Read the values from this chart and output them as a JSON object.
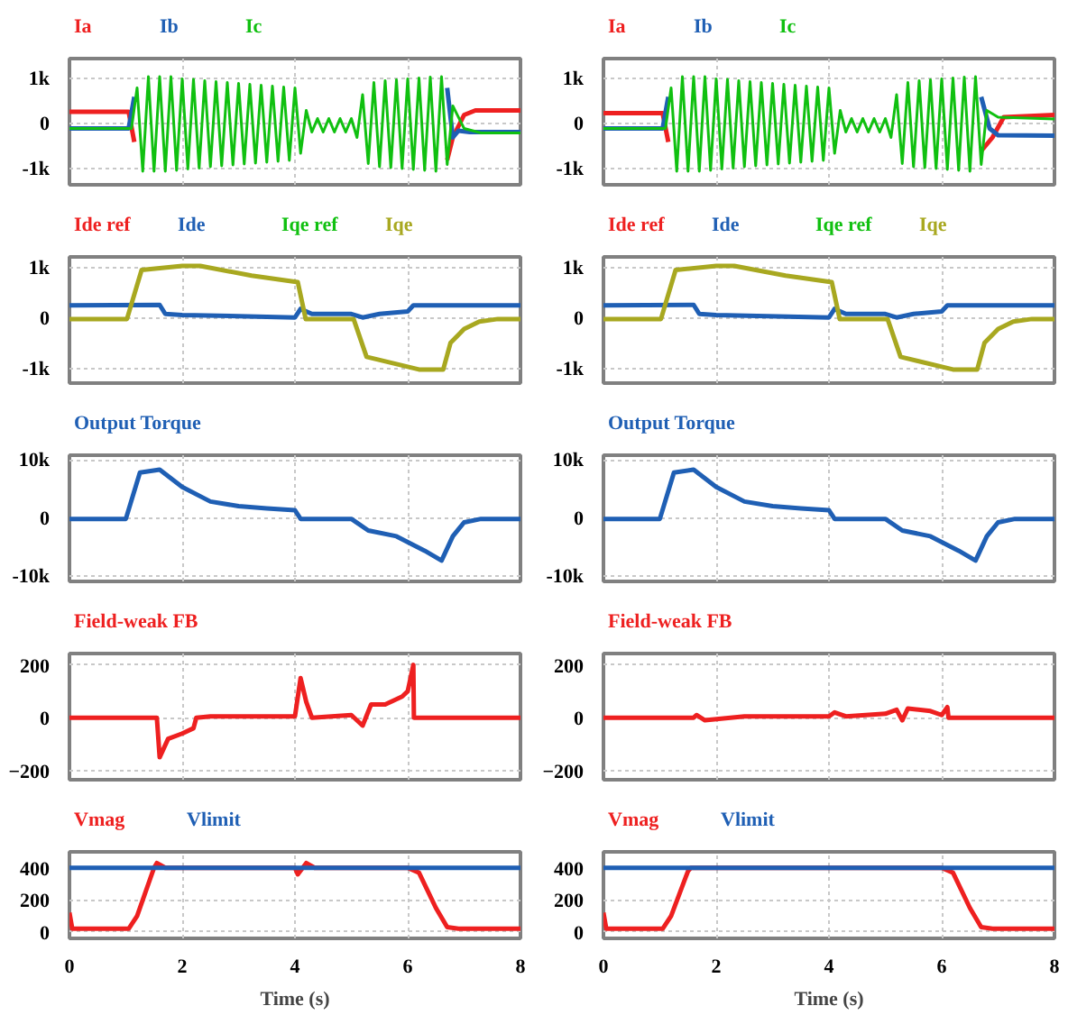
{
  "chart_data": [
    {
      "type": "line",
      "xlim": [
        0,
        8
      ],
      "xticks": [
        0,
        2,
        4,
        6,
        8
      ],
      "ylim": [
        -1350,
        1450
      ],
      "yticks": [
        {
          "value": 1000,
          "label": "1k"
        },
        0,
        {
          "value": -1000,
          "label": "-1k"
        }
      ],
      "tick_labels": "y",
      "grid": true,
      "series": [
        {
          "name": "Ia",
          "color": "#ee2020",
          "x": [
            0,
            1.05,
            1.15,
            3.9,
            6.7,
            6.8,
            7.0,
            7.2,
            8
          ],
          "values": [
            270,
            270,
            -400,
            null,
            -800,
            -300,
            200,
            300,
            300
          ]
        },
        {
          "name": "Ib",
          "color": "#1f5fb4",
          "x": [
            0,
            1.05,
            1.15,
            3.9,
            6.7,
            6.8,
            6.9,
            7.1,
            8
          ],
          "values": [
            -100,
            -100,
            600,
            null,
            800,
            -300,
            -150,
            -180,
            -180
          ]
        },
        {
          "name": "Ic",
          "color": "#10c010",
          "x": [
            0,
            1.1,
            1.2,
            1.3,
            1.4,
            1.5,
            1.6,
            1.7,
            1.8,
            1.9,
            2.0,
            2.1,
            2.2,
            2.3,
            2.4,
            2.5,
            2.6,
            2.7,
            2.8,
            2.9,
            3.0,
            3.1,
            3.2,
            3.3,
            3.4,
            3.5,
            3.6,
            3.7,
            3.8,
            3.9,
            4.0,
            4.1,
            4.2,
            4.3,
            4.4,
            4.5,
            4.6,
            4.7,
            4.8,
            4.9,
            5.0,
            5.1,
            5.2,
            5.3,
            5.4,
            5.5,
            5.6,
            5.7,
            5.8,
            5.9,
            6.0,
            6.1,
            6.2,
            6.3,
            6.4,
            6.5,
            6.6,
            6.7,
            6.8,
            7.0,
            7.3,
            8
          ],
          "values": [
            -100,
            -100,
            800,
            -1050,
            1050,
            -1050,
            1050,
            -1050,
            1050,
            -1030,
            1000,
            -1000,
            990,
            -980,
            960,
            -950,
            940,
            -930,
            920,
            -910,
            900,
            -890,
            880,
            -870,
            860,
            -850,
            840,
            -830,
            820,
            -810,
            800,
            -650,
            300,
            -180,
            120,
            -180,
            120,
            -180,
            120,
            -180,
            120,
            -300,
            650,
            -880,
            920,
            -950,
            960,
            -970,
            980,
            -990,
            1000,
            -1010,
            1020,
            -1030,
            1040,
            -1050,
            1050,
            -900,
            400,
            -100,
            -200,
            -200
          ]
        }
      ]
    },
    {
      "type": "line",
      "xlim": [
        0,
        8
      ],
      "xticks": [
        0,
        2,
        4,
        6,
        8
      ],
      "ylim": [
        -1350,
        1450
      ],
      "yticks": [
        {
          "value": 1000,
          "label": "1k"
        },
        0,
        {
          "value": -1000,
          "label": "-1k"
        }
      ],
      "tick_labels": "y",
      "grid": true,
      "series": [
        {
          "name": "Ia",
          "color": "#ee2020",
          "x": [
            0,
            1.05,
            1.15,
            3.9,
            6.7,
            6.9,
            7.1,
            8
          ],
          "values": [
            240,
            240,
            -400,
            null,
            -600,
            -300,
            150,
            200
          ]
        },
        {
          "name": "Ib",
          "color": "#1f5fb4",
          "x": [
            0,
            1.05,
            1.15,
            3.9,
            6.7,
            6.85,
            7.0,
            8
          ],
          "values": [
            -100,
            -100,
            600,
            null,
            600,
            -100,
            -250,
            -260
          ]
        },
        {
          "name": "Ic",
          "color": "#10c010",
          "x": [
            0,
            1.1,
            1.2,
            1.3,
            1.4,
            1.5,
            1.6,
            1.7,
            1.8,
            1.9,
            2.0,
            2.1,
            2.2,
            2.3,
            2.4,
            2.5,
            2.6,
            2.7,
            2.8,
            2.9,
            3.0,
            3.1,
            3.2,
            3.3,
            3.4,
            3.5,
            3.6,
            3.7,
            3.8,
            3.9,
            4.0,
            4.1,
            4.2,
            4.3,
            4.4,
            4.5,
            4.6,
            4.7,
            4.8,
            4.9,
            5.0,
            5.1,
            5.2,
            5.3,
            5.4,
            5.5,
            5.6,
            5.7,
            5.8,
            5.9,
            6.0,
            6.1,
            6.2,
            6.3,
            6.4,
            6.5,
            6.6,
            6.7,
            6.8,
            7.0,
            8
          ],
          "values": [
            -100,
            -100,
            800,
            -1050,
            1050,
            -1050,
            1050,
            -1050,
            1050,
            -1030,
            1000,
            -1000,
            990,
            -980,
            960,
            -950,
            940,
            -930,
            920,
            -910,
            900,
            -890,
            880,
            -870,
            860,
            -850,
            840,
            -830,
            820,
            -810,
            800,
            -650,
            300,
            -180,
            120,
            -180,
            120,
            -180,
            120,
            -180,
            120,
            -300,
            650,
            -880,
            920,
            -950,
            960,
            -970,
            980,
            -990,
            1000,
            -1010,
            1020,
            -1030,
            1040,
            -1050,
            1050,
            -900,
            300,
            150,
            110
          ]
        }
      ]
    },
    {
      "type": "line",
      "xlim": [
        0,
        8
      ],
      "xticks": [
        0,
        2,
        4,
        6,
        8
      ],
      "ylim": [
        -1270,
        1230
      ],
      "yticks": [
        {
          "value": 1000,
          "label": "1k"
        },
        0,
        {
          "value": -1000,
          "label": "-1k"
        }
      ],
      "tick_labels": "y",
      "grid": true,
      "series": [
        {
          "name": "Ide ref",
          "color": "#ee2020"
        },
        {
          "name": "Ide",
          "color": "#1f5fb4",
          "x": [
            0,
            1.6,
            1.7,
            2.0,
            4.0,
            4.1,
            4.3,
            5.0,
            5.2,
            5.5,
            6.0,
            6.1,
            8
          ],
          "values": [
            270,
            280,
            100,
            80,
            30,
            200,
            100,
            100,
            30,
            100,
            150,
            270,
            270
          ]
        },
        {
          "name": "Iqe ref",
          "color": "#10c010"
        },
        {
          "name": "Iqe",
          "color": "#a8a820",
          "x": [
            0,
            1.02,
            1.28,
            2.0,
            2.32,
            3.23,
            4.05,
            4.19,
            5.04,
            5.27,
            6.2,
            6.63,
            6.76,
            7.0,
            7.27,
            7.6,
            8
          ],
          "values": [
            0,
            0,
            970,
            1050,
            1050,
            860,
            730,
            0,
            0,
            -750,
            -1000,
            -1000,
            -470,
            -200,
            -50,
            0,
            0
          ]
        }
      ]
    },
    {
      "type": "line",
      "xlim": [
        0,
        8
      ],
      "xticks": [
        0,
        2,
        4,
        6,
        8
      ],
      "ylim": [
        -1270,
        1230
      ],
      "yticks": [
        {
          "value": 1000,
          "label": "1k"
        },
        0,
        {
          "value": -1000,
          "label": "-1k"
        }
      ],
      "tick_labels": "y",
      "grid": true,
      "series": [
        {
          "name": "Ide ref",
          "color": "#ee2020"
        },
        {
          "name": "Ide",
          "color": "#1f5fb4",
          "x": [
            0,
            1.6,
            1.7,
            2.0,
            4.0,
            4.1,
            4.3,
            5.0,
            5.2,
            5.5,
            6.0,
            6.1,
            8
          ],
          "values": [
            270,
            280,
            100,
            80,
            30,
            200,
            100,
            100,
            30,
            100,
            150,
            270,
            270
          ]
        },
        {
          "name": "Iqe ref",
          "color": "#10c010"
        },
        {
          "name": "Iqe",
          "color": "#a8a820",
          "x": [
            0,
            1.02,
            1.28,
            2.0,
            2.32,
            3.23,
            4.05,
            4.19,
            5.04,
            5.27,
            6.2,
            6.63,
            6.76,
            7.0,
            7.27,
            7.6,
            8
          ],
          "values": [
            0,
            0,
            970,
            1050,
            1050,
            860,
            730,
            0,
            0,
            -750,
            -1000,
            -1000,
            -470,
            -200,
            -50,
            0,
            0
          ]
        }
      ]
    },
    {
      "type": "line",
      "xlim": [
        0,
        8
      ],
      "xticks": [
        0,
        2,
        4,
        6,
        8
      ],
      "ylim": [
        -10800,
        11000
      ],
      "yticks": [
        {
          "value": 10000,
          "label": "10k"
        },
        0,
        {
          "value": -10000,
          "label": "-10k"
        }
      ],
      "tick_labels": "y",
      "grid": true,
      "series": [
        {
          "name": "Output Torque",
          "color": "#1f5fb4",
          "x": [
            0,
            1.0,
            1.25,
            1.6,
            2.0,
            2.5,
            3.0,
            3.5,
            4.0,
            4.1,
            5.0,
            5.3,
            5.8,
            6.3,
            6.6,
            6.8,
            7.0,
            7.3,
            8
          ],
          "values": [
            0,
            0,
            8000,
            8500,
            5500,
            3000,
            2200,
            1800,
            1500,
            0,
            0,
            -2000,
            -3000,
            -5500,
            -7200,
            -3000,
            -600,
            0,
            0
          ]
        }
      ]
    },
    {
      "type": "line",
      "xlim": [
        0,
        8
      ],
      "xticks": [
        0,
        2,
        4,
        6,
        8
      ],
      "ylim": [
        -10800,
        11000
      ],
      "yticks": [
        {
          "value": 10000,
          "label": "10k"
        },
        0,
        {
          "value": -10000,
          "label": "-10k"
        }
      ],
      "tick_labels": "y",
      "grid": true,
      "series": [
        {
          "name": "Output Torque",
          "color": "#1f5fb4",
          "x": [
            0,
            1.0,
            1.25,
            1.6,
            2.0,
            2.5,
            3.0,
            3.5,
            4.0,
            4.1,
            5.0,
            5.3,
            5.8,
            6.3,
            6.6,
            6.8,
            7.0,
            7.3,
            8
          ],
          "values": [
            0,
            0,
            8000,
            8500,
            5500,
            3000,
            2200,
            1800,
            1500,
            0,
            0,
            -2000,
            -3000,
            -5500,
            -7200,
            -3000,
            -600,
            0,
            0
          ]
        }
      ]
    },
    {
      "type": "line",
      "xlim": [
        0,
        8
      ],
      "xticks": [
        0,
        2,
        4,
        6,
        8
      ],
      "ylim": [
        -235,
        243
      ],
      "yticks": [
        200,
        0,
        -200
      ],
      "tick_labels": "y",
      "grid": true,
      "series": [
        {
          "name": "Field-weak FB",
          "color": "#ee2020",
          "x": [
            0,
            1.55,
            1.6,
            1.75,
            2.0,
            2.2,
            2.25,
            2.5,
            4.0,
            4.1,
            4.2,
            4.3,
            5.0,
            5.2,
            5.35,
            5.6,
            5.9,
            6.0,
            6.1,
            6.11,
            8
          ],
          "values": [
            0,
            0,
            -150,
            -80,
            -60,
            -40,
            0,
            5,
            5,
            150,
            60,
            0,
            10,
            -30,
            50,
            50,
            80,
            100,
            200,
            0,
            0
          ]
        }
      ]
    },
    {
      "type": "line",
      "xlim": [
        0,
        8
      ],
      "xticks": [
        0,
        2,
        4,
        6,
        8
      ],
      "ylim": [
        -235,
        243
      ],
      "yticks": [
        200,
        0,
        -200
      ],
      "tick_labels": "y",
      "grid": true,
      "series": [
        {
          "name": "Field-weak FB",
          "color": "#ee2020",
          "x": [
            0,
            1.6,
            1.65,
            1.8,
            2.5,
            4.0,
            4.1,
            4.3,
            5.0,
            5.2,
            5.3,
            5.4,
            5.8,
            6.0,
            6.1,
            6.12,
            8
          ],
          "values": [
            0,
            0,
            10,
            -10,
            5,
            5,
            20,
            5,
            15,
            30,
            -10,
            35,
            25,
            10,
            40,
            0,
            0
          ]
        }
      ]
    },
    {
      "type": "line",
      "xlim": [
        0,
        8
      ],
      "xticks": [
        0,
        2,
        4,
        6,
        8
      ],
      "ylim": [
        -40,
        500
      ],
      "yticks": [
        400,
        200,
        0
      ],
      "xlabel": "Time (s)",
      "grid": true,
      "series": [
        {
          "name": "Vmag",
          "color": "#ee2020",
          "x": [
            0,
            0.05,
            1.05,
            1.2,
            1.5,
            1.55,
            1.7,
            2.0,
            4.0,
            4.05,
            4.2,
            4.35,
            6.0,
            6.2,
            6.5,
            6.7,
            6.9,
            8
          ],
          "values": [
            120,
            20,
            20,
            100,
            400,
            430,
            400,
            400,
            400,
            360,
            430,
            400,
            400,
            370,
            150,
            30,
            20,
            20
          ]
        },
        {
          "name": "Vlimit",
          "color": "#1f5fb4",
          "x": [
            0,
            8
          ],
          "values": [
            400,
            400
          ]
        }
      ]
    },
    {
      "type": "line",
      "xlim": [
        0,
        8
      ],
      "xticks": [
        0,
        2,
        4,
        6,
        8
      ],
      "ylim": [
        -40,
        500
      ],
      "yticks": [
        400,
        200,
        0
      ],
      "xlabel": "Time (s)",
      "grid": true,
      "series": [
        {
          "name": "Vmag",
          "color": "#ee2020",
          "x": [
            0,
            0.05,
            1.05,
            1.2,
            1.5,
            1.55,
            2.0,
            4.0,
            6.0,
            6.2,
            6.5,
            6.7,
            6.9,
            8
          ],
          "values": [
            120,
            20,
            20,
            100,
            380,
            400,
            400,
            400,
            400,
            370,
            150,
            30,
            20,
            20
          ]
        },
        {
          "name": "Vlimit",
          "color": "#1f5fb4",
          "x": [
            0,
            8
          ],
          "values": [
            400,
            400
          ]
        }
      ]
    }
  ]
}
